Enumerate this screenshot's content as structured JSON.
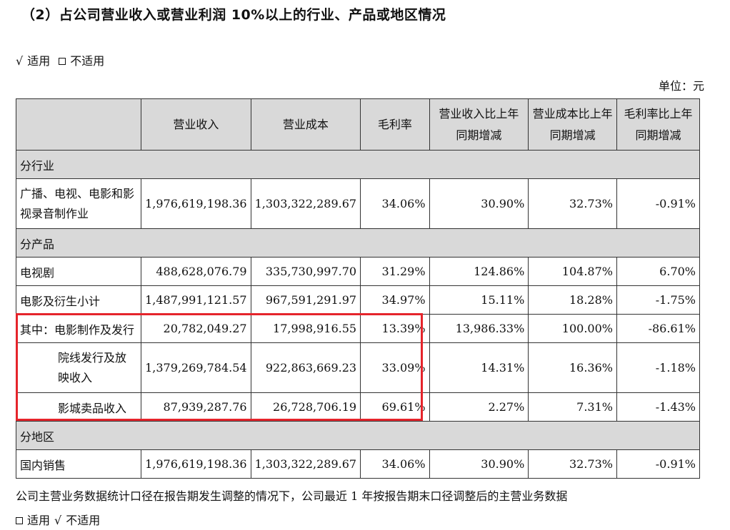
{
  "title": "（2）占公司营业收入或营业利润 10%以上的行业、产品或地区情况",
  "applicability_top": {
    "check": "√",
    "applicable": "适用",
    "not_applicable": "不适用"
  },
  "unit": "单位：元",
  "table": {
    "headers": [
      "营业收入",
      "营业成本",
      "毛利率",
      "营业收入比上年同期增减",
      "营业成本比上年同期增减",
      "毛利率比上年同期增减"
    ],
    "section_industry": "分行业",
    "row_industry": {
      "label": "广播、电视、电影和影视录音制作业",
      "values": [
        "1,976,619,198.36",
        "1,303,322,289.67",
        "34.06%",
        "30.90%",
        "32.73%",
        "-0.91%"
      ]
    },
    "section_product": "分产品",
    "row_tv": {
      "label": "电视剧",
      "values": [
        "488,628,076.79",
        "335,730,997.70",
        "31.29%",
        "124.86%",
        "104.87%",
        "6.70%"
      ]
    },
    "row_film": {
      "label": "电影及衍生小计",
      "values": [
        "1,487,991,121.57",
        "967,591,291.97",
        "34.97%",
        "15.11%",
        "18.28%",
        "-1.75%"
      ]
    },
    "row_film_prod": {
      "label": "其中：电影制作及发行",
      "values": [
        "20,782,049.27",
        "17,998,916.55",
        "13.39%",
        "13,986.33%",
        "100.00%",
        "-86.61%"
      ]
    },
    "row_cinema": {
      "label": "院线发行及放映收入",
      "values": [
        "1,379,269,784.54",
        "922,863,669.23",
        "33.09%",
        "14.31%",
        "16.36%",
        "-1.18%"
      ]
    },
    "row_concession": {
      "label": "影城卖品收入",
      "values": [
        "87,939,287.76",
        "26,728,706.19",
        "69.61%",
        "2.27%",
        "7.31%",
        "-1.43%"
      ]
    },
    "section_region": "分地区",
    "row_domestic": {
      "label": "国内销售",
      "values": [
        "1,976,619,198.36",
        "1,303,322,289.67",
        "34.06%",
        "30.90%",
        "32.73%",
        "-0.91%"
      ]
    }
  },
  "highlight_color": "#e5242b",
  "footnote": "公司主营业务数据统计口径在报告期发生调整的情况下，公司最近 1 年按报告期末口径调整后的主营业务数据",
  "applicability_bottom": {
    "check": "√",
    "applicable": "适用",
    "not_applicable": "不适用"
  }
}
